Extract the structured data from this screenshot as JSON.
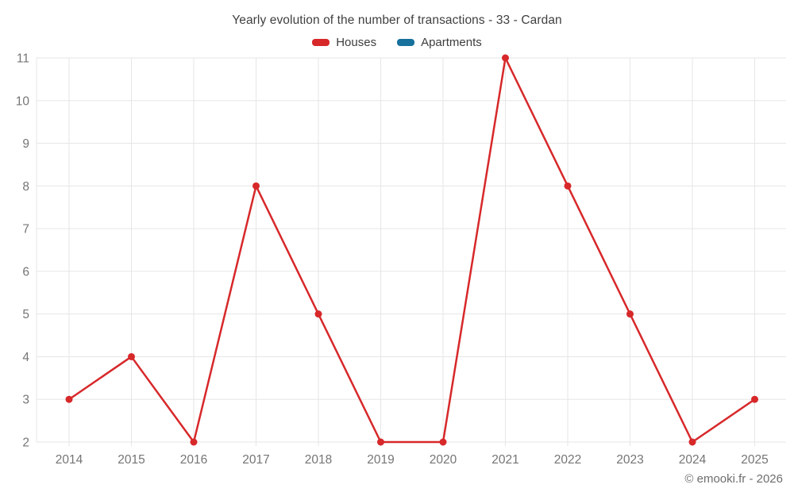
{
  "footer": {
    "text": "© emooki.fr - 2026"
  },
  "chart_data": {
    "type": "line",
    "title": "Yearly evolution of the number of transactions - 33 - Cardan",
    "categories": [
      "2014",
      "2015",
      "2016",
      "2017",
      "2018",
      "2019",
      "2020",
      "2021",
      "2022",
      "2023",
      "2024",
      "2025"
    ],
    "series": [
      {
        "name": "Houses",
        "color": "#d7282a",
        "values": [
          3,
          4,
          2,
          8,
          5,
          2,
          2,
          11,
          8,
          5,
          2,
          3
        ]
      },
      {
        "name": "Apartments",
        "color": "#17719c",
        "values": []
      }
    ],
    "xlabel": "",
    "ylabel": "",
    "ylim": [
      2,
      11
    ],
    "yticks": [
      2,
      3,
      4,
      5,
      6,
      7,
      8,
      9,
      10,
      11
    ],
    "grid": true,
    "legend_position": "top",
    "colors": {
      "gridline": "#e6e6e6",
      "axis_label": "#757575",
      "title_text": "#404040",
      "legend_text": "#3d3d3d",
      "footer_text": "#6e6e6e",
      "background": "#ffffff"
    }
  }
}
